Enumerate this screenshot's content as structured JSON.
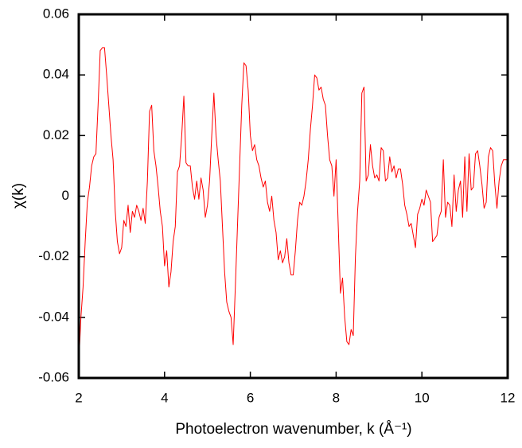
{
  "chart_data": {
    "type": "line",
    "x_label": "Photoelectron wavenumber, k (Å⁻¹)",
    "y_label": "χ(k)",
    "xlim": [
      2,
      12
    ],
    "ylim": [
      -0.06,
      0.06
    ],
    "xticks": [
      2,
      4,
      6,
      8,
      10,
      12
    ],
    "yticks": [
      -0.06,
      -0.04,
      -0.02,
      0,
      0.02,
      0.04,
      0.06
    ],
    "x": [
      2.0,
      2.05,
      2.1,
      2.15,
      2.2,
      2.25,
      2.3,
      2.35,
      2.4,
      2.45,
      2.5,
      2.55,
      2.6,
      2.65,
      2.7,
      2.75,
      2.8,
      2.85,
      2.9,
      2.95,
      3.0,
      3.05,
      3.1,
      3.15,
      3.2,
      3.25,
      3.3,
      3.35,
      3.4,
      3.45,
      3.5,
      3.55,
      3.6,
      3.65,
      3.7,
      3.75,
      3.8,
      3.85,
      3.9,
      3.95,
      4.0,
      4.05,
      4.1,
      4.15,
      4.2,
      4.25,
      4.3,
      4.35,
      4.4,
      4.45,
      4.5,
      4.55,
      4.6,
      4.65,
      4.7,
      4.75,
      4.8,
      4.85,
      4.9,
      4.95,
      5.0,
      5.05,
      5.1,
      5.15,
      5.2,
      5.25,
      5.3,
      5.35,
      5.4,
      5.45,
      5.5,
      5.55,
      5.6,
      5.65,
      5.7,
      5.75,
      5.8,
      5.85,
      5.9,
      5.95,
      6.0,
      6.05,
      6.1,
      6.15,
      6.2,
      6.25,
      6.3,
      6.35,
      6.4,
      6.45,
      6.5,
      6.55,
      6.6,
      6.65,
      6.7,
      6.75,
      6.8,
      6.85,
      6.9,
      6.95,
      7.0,
      7.05,
      7.1,
      7.15,
      7.2,
      7.25,
      7.3,
      7.35,
      7.4,
      7.45,
      7.5,
      7.55,
      7.6,
      7.65,
      7.7,
      7.75,
      7.8,
      7.85,
      7.9,
      7.95,
      8.0,
      8.05,
      8.1,
      8.15,
      8.2,
      8.25,
      8.3,
      8.35,
      8.4,
      8.45,
      8.5,
      8.55,
      8.6,
      8.65,
      8.7,
      8.75,
      8.8,
      8.85,
      8.9,
      8.95,
      9.0,
      9.05,
      9.1,
      9.15,
      9.2,
      9.25,
      9.3,
      9.35,
      9.4,
      9.45,
      9.5,
      9.55,
      9.6,
      9.65,
      9.7,
      9.75,
      9.8,
      9.85,
      9.9,
      9.95,
      10.0,
      10.05,
      10.1,
      10.15,
      10.2,
      10.25,
      10.3,
      10.35,
      10.4,
      10.45,
      10.5,
      10.55,
      10.6,
      10.65,
      10.7,
      10.75,
      10.8,
      10.85,
      10.9,
      10.95,
      11.0,
      11.05,
      11.1,
      11.15,
      11.2,
      11.25,
      11.3,
      11.35,
      11.4,
      11.45,
      11.5,
      11.55,
      11.6,
      11.65,
      11.7,
      11.75,
      11.8,
      11.85,
      11.9,
      12.0
    ],
    "series": [
      {
        "color": "#ff0000",
        "values": [
          -0.055,
          -0.04,
          -0.03,
          -0.015,
          -0.002,
          0.003,
          0.01,
          0.013,
          0.014,
          0.03,
          0.048,
          0.049,
          0.049,
          0.04,
          0.03,
          0.02,
          0.012,
          -0.005,
          -0.015,
          -0.019,
          -0.017,
          -0.008,
          -0.01,
          -0.003,
          -0.012,
          -0.005,
          -0.007,
          -0.003,
          -0.005,
          -0.008,
          -0.004,
          -0.009,
          0.005,
          0.028,
          0.03,
          0.015,
          0.01,
          0.003,
          -0.005,
          -0.01,
          -0.023,
          -0.018,
          -0.03,
          -0.025,
          -0.015,
          -0.01,
          0.008,
          0.01,
          0.02,
          0.033,
          0.011,
          0.01,
          0.01,
          0.003,
          -0.001,
          0.005,
          -0.001,
          0.006,
          0.002,
          -0.007,
          -0.003,
          0.005,
          0.02,
          0.034,
          0.02,
          0.012,
          0.005,
          -0.01,
          -0.025,
          -0.035,
          -0.038,
          -0.04,
          -0.049,
          -0.03,
          -0.01,
          0.01,
          0.03,
          0.044,
          0.043,
          0.035,
          0.02,
          0.015,
          0.017,
          0.012,
          0.01,
          0.006,
          0.003,
          0.005,
          -0.002,
          -0.005,
          0.0,
          -0.008,
          -0.012,
          -0.021,
          -0.018,
          -0.022,
          -0.02,
          -0.014,
          -0.022,
          -0.026,
          -0.026,
          -0.018,
          -0.008,
          -0.002,
          -0.003,
          0.0,
          0.005,
          0.012,
          0.022,
          0.03,
          0.04,
          0.039,
          0.035,
          0.036,
          0.032,
          0.03,
          0.02,
          0.012,
          0.01,
          0.0,
          0.012,
          -0.01,
          -0.032,
          -0.027,
          -0.04,
          -0.048,
          -0.049,
          -0.044,
          -0.046,
          -0.02,
          -0.005,
          0.005,
          0.034,
          0.036,
          0.005,
          0.007,
          0.017,
          0.01,
          0.006,
          0.007,
          0.005,
          0.016,
          0.015,
          0.005,
          0.006,
          0.013,
          0.008,
          0.01,
          0.006,
          0.009,
          0.009,
          0.004,
          -0.003,
          -0.006,
          -0.01,
          -0.009,
          -0.013,
          -0.017,
          -0.006,
          -0.004,
          -0.001,
          -0.003,
          0.002,
          0.0,
          -0.002,
          -0.015,
          -0.014,
          -0.013,
          -0.007,
          -0.005,
          0.012,
          -0.007,
          -0.002,
          -0.003,
          -0.01,
          0.007,
          -0.005,
          0.002,
          0.005,
          -0.007,
          0.013,
          -0.005,
          0.014,
          0.002,
          0.003,
          0.014,
          0.015,
          0.01,
          0.004,
          -0.004,
          -0.002,
          0.013,
          0.016,
          0.015,
          0.004,
          -0.004,
          0.005,
          0.01,
          0.012,
          0.012
        ]
      }
    ]
  }
}
